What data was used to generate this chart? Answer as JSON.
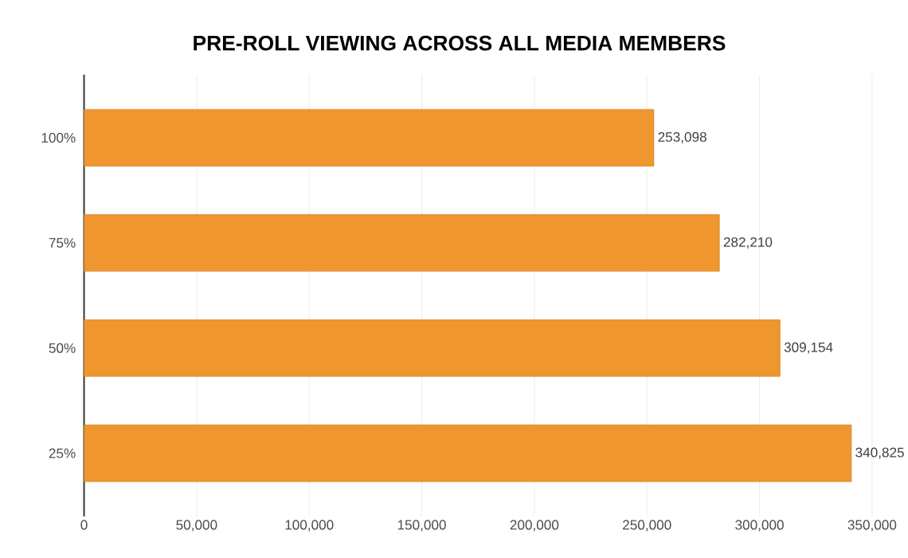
{
  "chart_data": {
    "type": "bar",
    "orientation": "horizontal",
    "title": "PRE-ROLL VIEWING ACROSS ALL MEDIA MEMBERS",
    "categories": [
      "100%",
      "75%",
      "50%",
      "25%"
    ],
    "values": [
      253098,
      282210,
      309154,
      340825
    ],
    "value_labels": [
      "253,098",
      "282,210",
      "309,154",
      "340,825"
    ],
    "color": "#f0962e",
    "xlim": [
      0,
      350000
    ],
    "xticks": [
      0,
      {
        "value": 50000,
        "label": "50,000"
      },
      {
        "value": 100000,
        "label": "100,000"
      },
      {
        "value": 150000,
        "label": "150,000"
      },
      {
        "value": 200000,
        "label": "200,000"
      },
      {
        "value": 250000,
        "label": "250,000"
      },
      {
        "value": 300000,
        "label": "300,000"
      },
      {
        "value": 350000,
        "label": "350,000"
      }
    ],
    "grid": "x"
  }
}
